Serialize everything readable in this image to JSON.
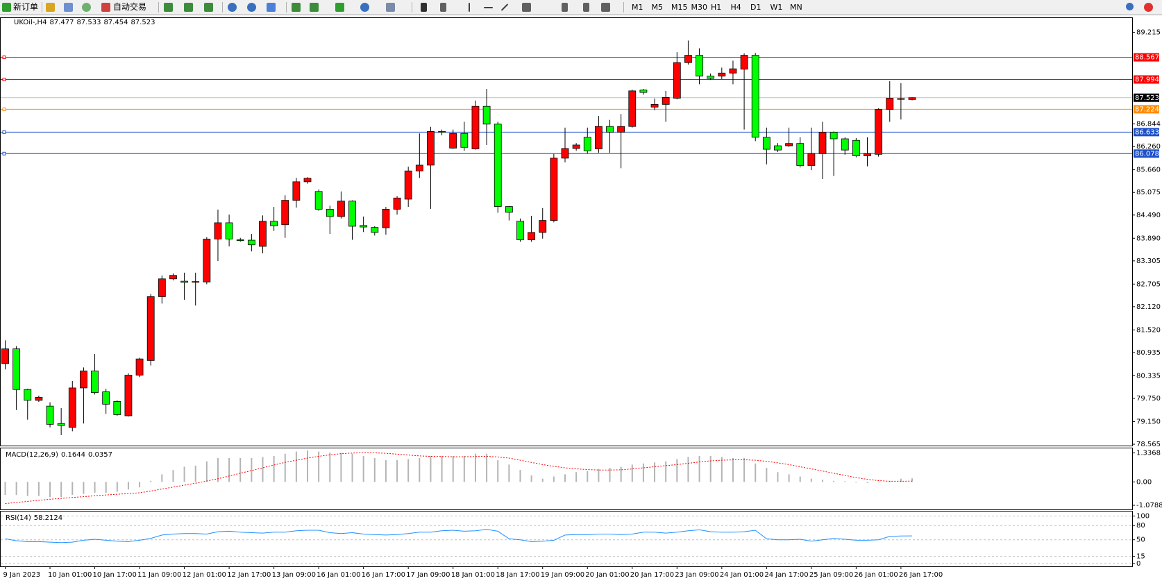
{
  "toolbar": {
    "new_order": "新订单",
    "auto_trading": "自动交易",
    "timeframes": [
      "M1",
      "M5",
      "M15",
      "M30",
      "H1",
      "H4",
      "D1",
      "W1",
      "MN"
    ]
  },
  "chart_data": [
    {
      "type": "candlestick",
      "title": "UKOil-,H4",
      "categories": [
        "9 Jan 2023",
        null,
        null,
        null,
        "10 Jan 01:00",
        null,
        null,
        null,
        "10 Jan 17:00",
        null,
        null,
        null,
        "11 Jan 09:00",
        null,
        null,
        null,
        "12 Jan 01:00",
        null,
        null,
        null,
        "12 Jan 17:00",
        null,
        null,
        null,
        "13 Jan 09:00",
        null,
        null,
        null,
        "16 Jan 01:00",
        null,
        null,
        null,
        "16 Jan 17:00",
        null,
        null,
        null,
        "17 Jan 09:00",
        null,
        null,
        null,
        "18 Jan 01:00",
        null,
        null,
        null,
        "18 Jan 17:00",
        null,
        null,
        null,
        "19 Jan 09:00",
        null,
        null,
        null,
        "20 Jan 01:00",
        null,
        null,
        null,
        "20 Jan 17:00",
        null,
        null,
        null,
        "23 Jan 09:00",
        null,
        null,
        null,
        "24 Jan 01:00",
        null,
        null,
        null,
        "24 Jan 17:00",
        null,
        null,
        null,
        "25 Jan 09:00",
        null,
        null,
        null,
        "26 Jan 01:00",
        null,
        null,
        null,
        "26 Jan 17:00",
        null
      ],
      "open": [
        80.65,
        81.03,
        79.98,
        79.7,
        79.55,
        79.1,
        79.0,
        80.02,
        80.46,
        79.92,
        79.67,
        79.3,
        80.35,
        80.73,
        82.38,
        82.84,
        82.78,
        82.76,
        82.76,
        83.87,
        84.29,
        83.85,
        83.84,
        83.68,
        84.33,
        84.24,
        84.87,
        85.35,
        85.1,
        84.64,
        84.45,
        84.85,
        84.22,
        84.17,
        84.16,
        84.64,
        84.9,
        85.63,
        85.78,
        86.65,
        86.22,
        86.6,
        86.2,
        87.3,
        86.84,
        84.71,
        84.33,
        83.85,
        84.04,
        84.35,
        85.96,
        86.21,
        86.5,
        86.2,
        86.78,
        86.63,
        86.78,
        87.72,
        87.28,
        87.35,
        87.51,
        88.43,
        88.62,
        88.08,
        88.08,
        88.16,
        88.26,
        88.62,
        86.5,
        86.28,
        86.28,
        86.34,
        85.77,
        86.08,
        86.63,
        86.46,
        86.42,
        86.02,
        86.06,
        87.22,
        87.48,
        87.477
      ],
      "high": [
        81.25,
        81.1,
        80.0,
        79.82,
        79.65,
        79.5,
        80.2,
        80.55,
        80.9,
        80.0,
        79.7,
        80.4,
        80.8,
        82.45,
        82.93,
        82.98,
        83.0,
        83.0,
        83.92,
        84.63,
        84.5,
        83.9,
        84.0,
        84.48,
        84.7,
        85.0,
        85.45,
        85.47,
        85.15,
        84.73,
        85.1,
        84.87,
        84.45,
        84.2,
        84.7,
        84.98,
        85.74,
        86.6,
        86.77,
        86.7,
        86.7,
        86.9,
        87.45,
        87.75,
        86.9,
        84.72,
        84.4,
        84.47,
        84.67,
        86.07,
        86.75,
        86.35,
        86.75,
        87.05,
        86.95,
        87.1,
        87.73,
        87.75,
        87.5,
        87.7,
        88.7,
        89.0,
        88.8,
        88.15,
        88.3,
        88.48,
        88.67,
        88.68,
        86.75,
        86.35,
        86.75,
        86.5,
        86.75,
        86.9,
        86.65,
        86.5,
        86.48,
        86.5,
        87.25,
        87.95,
        87.9,
        87.533
      ],
      "low": [
        80.5,
        79.45,
        79.2,
        79.66,
        79.0,
        78.8,
        78.9,
        79.1,
        79.85,
        79.35,
        79.3,
        79.28,
        80.3,
        80.6,
        82.2,
        82.8,
        82.3,
        82.15,
        82.7,
        83.3,
        83.68,
        83.8,
        83.55,
        83.5,
        84.08,
        83.9,
        84.68,
        85.3,
        84.6,
        84.0,
        84.4,
        83.85,
        84.05,
        83.96,
        83.98,
        84.5,
        84.7,
        85.45,
        84.65,
        86.55,
        86.2,
        86.15,
        86.18,
        86.3,
        84.55,
        84.35,
        83.8,
        83.8,
        83.88,
        84.3,
        85.85,
        86.15,
        86.08,
        86.1,
        86.1,
        85.7,
        86.75,
        87.6,
        87.2,
        86.9,
        87.48,
        88.38,
        87.87,
        87.98,
        88.0,
        87.87,
        86.7,
        86.4,
        85.8,
        86.12,
        86.25,
        85.72,
        85.65,
        85.42,
        85.5,
        86.05,
        85.98,
        85.75,
        86.0,
        86.9,
        86.96,
        87.454
      ],
      "close": [
        81.03,
        79.98,
        79.7,
        79.78,
        79.08,
        79.05,
        80.02,
        80.46,
        79.9,
        79.6,
        79.33,
        80.35,
        80.77,
        82.38,
        82.84,
        82.93,
        82.75,
        82.77,
        83.87,
        84.29,
        83.87,
        83.83,
        83.72,
        84.33,
        84.21,
        84.87,
        85.35,
        85.44,
        84.64,
        84.45,
        84.85,
        84.2,
        84.18,
        84.04,
        84.64,
        84.93,
        85.63,
        85.78,
        86.65,
        86.63,
        86.6,
        86.24,
        87.3,
        86.84,
        84.71,
        84.56,
        83.85,
        84.04,
        84.35,
        85.96,
        86.21,
        86.3,
        86.15,
        86.78,
        86.63,
        86.78,
        87.7,
        87.66,
        87.35,
        87.53,
        88.43,
        88.62,
        88.08,
        88.02,
        88.16,
        88.27,
        88.62,
        86.5,
        86.19,
        86.17,
        86.34,
        85.77,
        86.08,
        86.63,
        86.46,
        86.17,
        86.02,
        86.08,
        87.22,
        87.51,
        87.5,
        87.523
      ],
      "up_color": "#ff0000",
      "down_color": "#00ff00",
      "levels": [
        {
          "value": 88.567,
          "color": "#ff0000"
        },
        {
          "value": 87.994,
          "color": "#ff0000"
        },
        {
          "value": 87.224,
          "color": "#ff8c00"
        },
        {
          "value": 86.633,
          "color": "#1e50c8"
        },
        {
          "value": 86.078,
          "color": "#1e50c8"
        }
      ],
      "ylim": [
        78.53,
        89.6
      ],
      "yticks": [
        89.215,
        86.844,
        {
          "value": 86.26,
          "label": "86.260"
        },
        {
          "value": 85.66,
          "label": "85.660"
        },
        85.075,
        {
          "value": 84.49,
          "label": "84.490"
        },
        {
          "value": 83.89,
          "label": "83.890"
        },
        83.305,
        82.705,
        {
          "value": 82.12,
          "label": "82.120"
        },
        {
          "value": 81.52,
          "label": "81.520"
        },
        80.935,
        80.335,
        {
          "value": 79.75,
          "label": "79.750"
        },
        {
          "value": 79.15,
          "label": "79.150"
        },
        78.565
      ]
    },
    {
      "type": "bar",
      "title": "MACD(12,26,9)",
      "color": "#b4b4b4",
      "signal_color": "#ff0000",
      "values": [
        -0.6,
        -0.6,
        -0.65,
        -0.65,
        -0.7,
        -0.7,
        -0.6,
        -0.55,
        -0.5,
        -0.5,
        -0.45,
        -0.35,
        -0.25,
        0.05,
        0.35,
        0.55,
        0.7,
        0.75,
        0.95,
        1.1,
        1.1,
        1.1,
        1.1,
        1.15,
        1.2,
        1.3,
        1.4,
        1.45,
        1.4,
        1.35,
        1.35,
        1.3,
        1.2,
        1.1,
        1.0,
        1.0,
        1.05,
        1.1,
        1.2,
        1.2,
        1.2,
        1.2,
        1.3,
        1.3,
        1.0,
        0.8,
        0.55,
        0.3,
        0.15,
        0.25,
        0.35,
        0.45,
        0.5,
        0.6,
        0.65,
        0.7,
        0.8,
        0.85,
        0.9,
        0.95,
        1.05,
        1.15,
        1.2,
        1.2,
        1.15,
        1.1,
        1.1,
        0.85,
        0.65,
        0.45,
        0.35,
        0.25,
        0.15,
        0.1,
        0.05,
        0.03,
        -0.03,
        -0.05,
        0.0,
        0.05,
        0.15,
        0.1644
      ],
      "signal": [
        -1.0,
        -0.95,
        -0.9,
        -0.85,
        -0.8,
        -0.76,
        -0.72,
        -0.68,
        -0.64,
        -0.6,
        -0.57,
        -0.54,
        -0.5,
        -0.42,
        -0.33,
        -0.24,
        -0.15,
        -0.06,
        0.04,
        0.15,
        0.27,
        0.4,
        0.52,
        0.65,
        0.78,
        0.9,
        1.0,
        1.1,
        1.18,
        1.25,
        1.3,
        1.33,
        1.35,
        1.34,
        1.32,
        1.28,
        1.24,
        1.2,
        1.18,
        1.17,
        1.16,
        1.16,
        1.17,
        1.18,
        1.15,
        1.1,
        1.0,
        0.9,
        0.8,
        0.72,
        0.65,
        0.6,
        0.57,
        0.55,
        0.55,
        0.56,
        0.6,
        0.65,
        0.7,
        0.75,
        0.8,
        0.86,
        0.92,
        0.97,
        1.0,
        1.02,
        1.02,
        1.0,
        0.95,
        0.88,
        0.8,
        0.7,
        0.6,
        0.5,
        0.4,
        0.3,
        0.2,
        0.12,
        0.06,
        0.03,
        0.03,
        0.0357
      ],
      "ylim": [
        -1.27,
        1.58
      ],
      "yticks": [
        1.3368,
        {
          "value": 0,
          "label": "0.00"
        },
        -1.0788
      ]
    },
    {
      "type": "line",
      "title": "RSI(14)",
      "color": "#1e90ff",
      "values": [
        52,
        48,
        46,
        46,
        45,
        44,
        45,
        49,
        51,
        49,
        47,
        46,
        49,
        53,
        60,
        62,
        63,
        63,
        62,
        67,
        68,
        66,
        65,
        64,
        66,
        66,
        69,
        70,
        70,
        65,
        63,
        65,
        62,
        61,
        60,
        61,
        63,
        66,
        66,
        69,
        70,
        68,
        69,
        72,
        68,
        52,
        50,
        46,
        47,
        49,
        60,
        61,
        61,
        62,
        62,
        61,
        62,
        66,
        66,
        64,
        66,
        69,
        71,
        67,
        66,
        66,
        67,
        70,
        52,
        50,
        50,
        51,
        47,
        50,
        53,
        51,
        49,
        49,
        50,
        57,
        58,
        58.2124
      ],
      "ylim": [
        -6,
        111
      ],
      "yticks": [
        100,
        80,
        50,
        15,
        0
      ]
    }
  ]
}
